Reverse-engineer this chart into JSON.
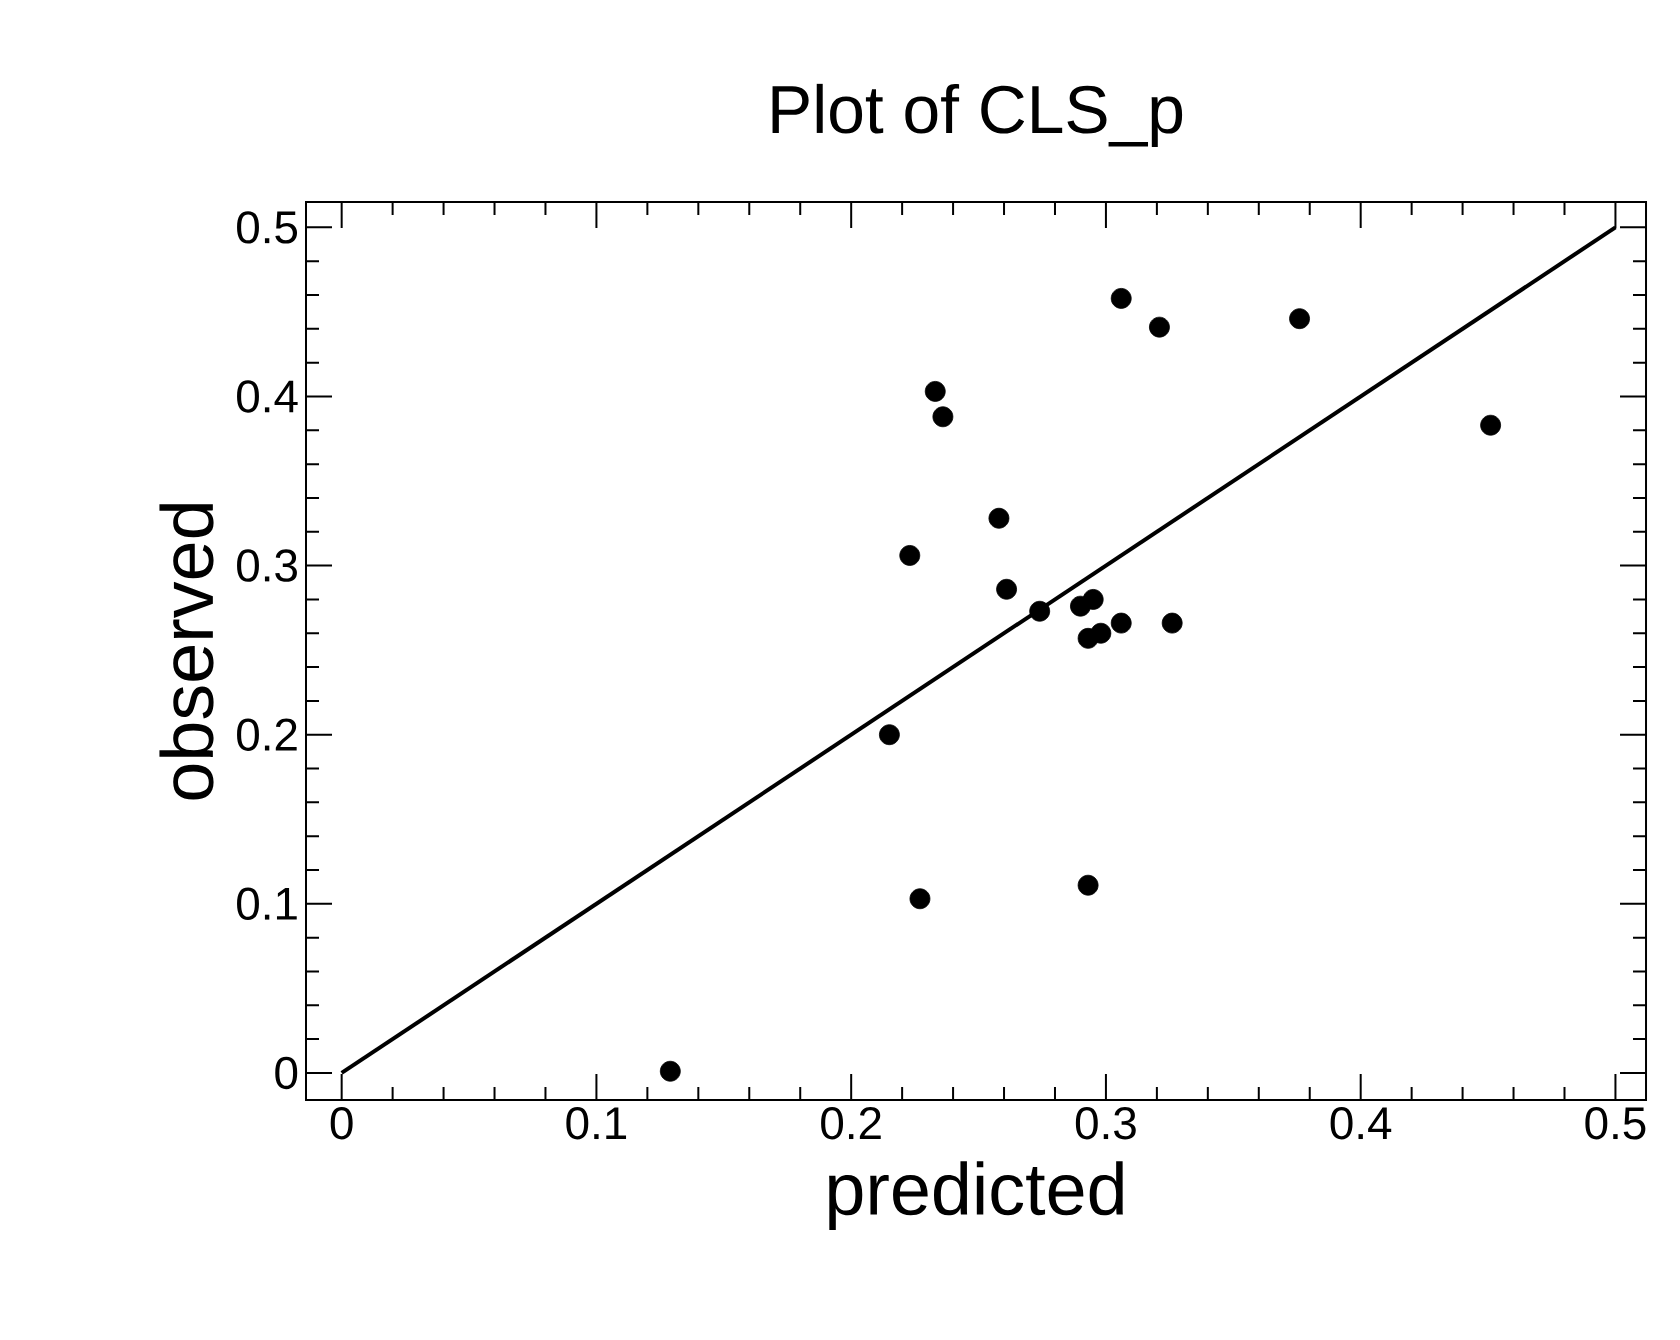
{
  "chart_data": {
    "type": "scatter",
    "title": "Plot of CLS_p",
    "xlabel": "predicted",
    "ylabel": "observed",
    "xlim": [
      -0.014,
      0.512
    ],
    "ylim": [
      -0.016,
      0.515
    ],
    "xticks": [
      0,
      0.1,
      0.2,
      0.3,
      0.4,
      0.5
    ],
    "yticks": [
      0,
      0.1,
      0.2,
      0.3,
      0.4,
      0.5
    ],
    "grid": false,
    "marker": "circle",
    "series": [
      {
        "color": "#000000",
        "x": [
          0.129,
          0.215,
          0.223,
          0.227,
          0.233,
          0.236,
          0.258,
          0.261,
          0.274,
          0.29,
          0.295,
          0.293,
          0.293,
          0.298,
          0.306,
          0.326,
          0.306,
          0.321,
          0.376,
          0.451
        ],
        "values": [
          0.001,
          0.2,
          0.306,
          0.103,
          0.403,
          0.388,
          0.328,
          0.286,
          0.273,
          0.276,
          0.28,
          0.111,
          0.257,
          0.26,
          0.266,
          0.266,
          0.458,
          0.441,
          0.446,
          0.383
        ]
      },
      {
        "type": "line",
        "color": "#000000",
        "marker": "none",
        "x": [
          0,
          0.5
        ],
        "values": [
          0,
          0.5
        ]
      }
    ]
  }
}
